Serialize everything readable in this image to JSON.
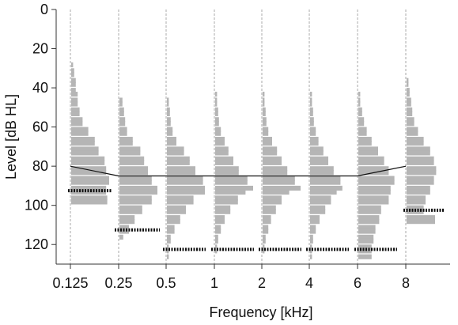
{
  "chart_data": {
    "type": "bar",
    "xlabel": "Frequency [kHz]",
    "ylabel": "Level [dB HL]",
    "x_ticks": [
      "0.125",
      "0.25",
      "0.5",
      "1",
      "2",
      "4",
      "6",
      "8"
    ],
    "y_ticks": [
      0,
      20,
      40,
      60,
      80,
      100,
      120
    ],
    "ylim": [
      0,
      130
    ],
    "y_inverted": true,
    "bin_width_db": 2.5,
    "colors": {
      "histogram": "#b5b5b5",
      "axis": "#333333",
      "guide_line": "#aaaaaa",
      "threshold_line": "#111111",
      "limit_marker": "#111111"
    },
    "series": [
      {
        "frequency": "0.125",
        "bins": [
          [
            27,
            0.05
          ],
          [
            30,
            0.08
          ],
          [
            32,
            0.08
          ],
          [
            35,
            0.12
          ],
          [
            37,
            0.12
          ],
          [
            40,
            0.12
          ],
          [
            42,
            0.17
          ],
          [
            45,
            0.17
          ],
          [
            47,
            0.17
          ],
          [
            50,
            0.22
          ],
          [
            52,
            0.22
          ],
          [
            55,
            0.3
          ],
          [
            57,
            0.3
          ],
          [
            60,
            0.45
          ],
          [
            62,
            0.45
          ],
          [
            65,
            0.62
          ],
          [
            67,
            0.62
          ],
          [
            70,
            0.72
          ],
          [
            72,
            0.72
          ],
          [
            75,
            0.88
          ],
          [
            77,
            0.88
          ],
          [
            80,
            0.92
          ],
          [
            82,
            0.92
          ],
          [
            85,
            1.0
          ],
          [
            87,
            1.0
          ],
          [
            90,
            0.92
          ],
          [
            92,
            0.92
          ],
          [
            95,
            0.95
          ],
          [
            97,
            0.95
          ]
        ],
        "threshold": 80,
        "limit": 92.5
      },
      {
        "frequency": "0.25",
        "bins": [
          [
            45,
            0.08
          ],
          [
            47,
            0.08
          ],
          [
            50,
            0.12
          ],
          [
            52,
            0.12
          ],
          [
            55,
            0.15
          ],
          [
            57,
            0.15
          ],
          [
            60,
            0.2
          ],
          [
            62,
            0.2
          ],
          [
            65,
            0.35
          ],
          [
            67,
            0.35
          ],
          [
            70,
            0.55
          ],
          [
            72,
            0.55
          ],
          [
            75,
            0.65
          ],
          [
            77,
            0.65
          ],
          [
            80,
            0.75
          ],
          [
            82,
            0.75
          ],
          [
            85,
            0.85
          ],
          [
            87,
            0.85
          ],
          [
            90,
            1.0
          ],
          [
            92,
            1.0
          ],
          [
            95,
            0.85
          ],
          [
            97,
            0.85
          ],
          [
            100,
            0.6
          ],
          [
            102,
            0.6
          ],
          [
            105,
            0.4
          ],
          [
            107,
            0.4
          ],
          [
            110,
            0.25
          ],
          [
            112,
            0.25
          ],
          [
            115,
            0.1
          ]
        ],
        "threshold": 85,
        "limit": 112.5
      },
      {
        "frequency": "0.5",
        "bins": [
          [
            45,
            0.05
          ],
          [
            47,
            0.05
          ],
          [
            50,
            0.08
          ],
          [
            52,
            0.08
          ],
          [
            55,
            0.1
          ],
          [
            57,
            0.1
          ],
          [
            60,
            0.15
          ],
          [
            62,
            0.15
          ],
          [
            65,
            0.25
          ],
          [
            67,
            0.25
          ],
          [
            70,
            0.45
          ],
          [
            72,
            0.45
          ],
          [
            75,
            0.6
          ],
          [
            77,
            0.6
          ],
          [
            80,
            0.75
          ],
          [
            82,
            0.75
          ],
          [
            85,
            0.95
          ],
          [
            87,
            0.95
          ],
          [
            90,
            1.0
          ],
          [
            92,
            1.0
          ],
          [
            95,
            0.7
          ],
          [
            97,
            0.7
          ],
          [
            100,
            0.5
          ],
          [
            102,
            0.5
          ],
          [
            105,
            0.35
          ],
          [
            107,
            0.35
          ],
          [
            110,
            0.2
          ],
          [
            112,
            0.2
          ],
          [
            115,
            0.1
          ],
          [
            117,
            0.1
          ],
          [
            120,
            0.05
          ],
          [
            122,
            0.05
          ],
          [
            125,
            0.05
          ]
        ],
        "threshold": 85,
        "limit": 122.5
      },
      {
        "frequency": "1",
        "bins": [
          [
            42,
            0.05
          ],
          [
            45,
            0.05
          ],
          [
            47,
            0.05
          ],
          [
            50,
            0.08
          ],
          [
            52,
            0.08
          ],
          [
            55,
            0.1
          ],
          [
            57,
            0.1
          ],
          [
            60,
            0.15
          ],
          [
            62,
            0.15
          ],
          [
            65,
            0.25
          ],
          [
            67,
            0.25
          ],
          [
            70,
            0.35
          ],
          [
            72,
            0.35
          ],
          [
            75,
            0.48
          ],
          [
            77,
            0.48
          ],
          [
            80,
            0.62
          ],
          [
            82,
            0.62
          ],
          [
            85,
            0.85
          ],
          [
            87,
            0.85
          ],
          [
            90,
            1.0
          ],
          [
            92,
            0.8
          ],
          [
            95,
            0.6
          ],
          [
            97,
            0.6
          ],
          [
            100,
            0.4
          ],
          [
            102,
            0.4
          ],
          [
            105,
            0.25
          ],
          [
            107,
            0.25
          ],
          [
            110,
            0.15
          ],
          [
            112,
            0.15
          ],
          [
            115,
            0.08
          ],
          [
            117,
            0.08
          ],
          [
            120,
            0.05
          ],
          [
            122,
            0.05
          ]
        ],
        "threshold": 85,
        "limit": 122.5
      },
      {
        "frequency": "2",
        "bins": [
          [
            42,
            0.05
          ],
          [
            45,
            0.05
          ],
          [
            47,
            0.05
          ],
          [
            50,
            0.08
          ],
          [
            52,
            0.08
          ],
          [
            55,
            0.1
          ],
          [
            57,
            0.1
          ],
          [
            60,
            0.15
          ],
          [
            62,
            0.15
          ],
          [
            65,
            0.25
          ],
          [
            67,
            0.25
          ],
          [
            70,
            0.38
          ],
          [
            72,
            0.38
          ],
          [
            75,
            0.5
          ],
          [
            77,
            0.5
          ],
          [
            80,
            0.65
          ],
          [
            82,
            0.65
          ],
          [
            85,
            0.85
          ],
          [
            87,
            0.85
          ],
          [
            90,
            1.0
          ],
          [
            92,
            0.7
          ],
          [
            95,
            0.5
          ],
          [
            97,
            0.5
          ],
          [
            100,
            0.35
          ],
          [
            102,
            0.35
          ],
          [
            105,
            0.22
          ],
          [
            107,
            0.22
          ],
          [
            110,
            0.15
          ],
          [
            112,
            0.15
          ],
          [
            115,
            0.08
          ],
          [
            117,
            0.08
          ],
          [
            120,
            0.05
          ],
          [
            122,
            0.05
          ]
        ],
        "threshold": 85,
        "limit": 122.5
      },
      {
        "frequency": "4",
        "bins": [
          [
            42,
            0.05
          ],
          [
            45,
            0.05
          ],
          [
            47,
            0.05
          ],
          [
            50,
            0.08
          ],
          [
            52,
            0.08
          ],
          [
            55,
            0.1
          ],
          [
            57,
            0.1
          ],
          [
            60,
            0.15
          ],
          [
            62,
            0.15
          ],
          [
            65,
            0.22
          ],
          [
            67,
            0.22
          ],
          [
            70,
            0.35
          ],
          [
            72,
            0.35
          ],
          [
            75,
            0.48
          ],
          [
            77,
            0.48
          ],
          [
            80,
            0.62
          ],
          [
            82,
            0.62
          ],
          [
            85,
            0.8
          ],
          [
            87,
            0.8
          ],
          [
            90,
            0.85
          ],
          [
            92,
            0.7
          ],
          [
            95,
            0.55
          ],
          [
            97,
            0.55
          ],
          [
            100,
            0.4
          ],
          [
            102,
            0.4
          ],
          [
            105,
            0.25
          ],
          [
            107,
            0.25
          ],
          [
            110,
            0.15
          ],
          [
            112,
            0.15
          ],
          [
            115,
            0.08
          ],
          [
            117,
            0.08
          ],
          [
            120,
            0.05
          ],
          [
            122,
            0.05
          ],
          [
            125,
            0.05
          ]
        ],
        "threshold": 85,
        "limit": 122.5
      },
      {
        "frequency": "6",
        "bins": [
          [
            42,
            0.05
          ],
          [
            45,
            0.05
          ],
          [
            47,
            0.05
          ],
          [
            50,
            0.1
          ],
          [
            52,
            0.1
          ],
          [
            55,
            0.15
          ],
          [
            57,
            0.15
          ],
          [
            60,
            0.22
          ],
          [
            62,
            0.22
          ],
          [
            65,
            0.35
          ],
          [
            67,
            0.35
          ],
          [
            70,
            0.52
          ],
          [
            72,
            0.52
          ],
          [
            75,
            0.68
          ],
          [
            77,
            0.68
          ],
          [
            80,
            0.8
          ],
          [
            82,
            0.8
          ],
          [
            85,
            0.95
          ],
          [
            87,
            0.95
          ],
          [
            90,
            0.85
          ],
          [
            92,
            0.85
          ],
          [
            95,
            0.8
          ],
          [
            97,
            0.8
          ],
          [
            100,
            0.6
          ],
          [
            102,
            0.6
          ],
          [
            105,
            0.55
          ],
          [
            107,
            0.55
          ],
          [
            110,
            0.45
          ],
          [
            112,
            0.45
          ],
          [
            115,
            0.4
          ],
          [
            117,
            0.4
          ],
          [
            120,
            0.35
          ],
          [
            122,
            0.35
          ],
          [
            125,
            0.35
          ]
        ],
        "threshold": 85,
        "limit": 122.5
      },
      {
        "frequency": "8",
        "bins": [
          [
            35,
            0.05
          ],
          [
            37,
            0.05
          ],
          [
            40,
            0.08
          ],
          [
            42,
            0.08
          ],
          [
            45,
            0.12
          ],
          [
            47,
            0.12
          ],
          [
            50,
            0.15
          ],
          [
            52,
            0.15
          ],
          [
            55,
            0.2
          ],
          [
            57,
            0.2
          ],
          [
            60,
            0.3
          ],
          [
            62,
            0.3
          ],
          [
            65,
            0.45
          ],
          [
            67,
            0.45
          ],
          [
            70,
            0.62
          ],
          [
            72,
            0.62
          ],
          [
            75,
            0.72
          ],
          [
            77,
            0.72
          ],
          [
            80,
            0.78
          ],
          [
            82,
            0.78
          ],
          [
            85,
            0.72
          ],
          [
            87,
            0.72
          ],
          [
            90,
            0.62
          ],
          [
            92,
            0.62
          ],
          [
            95,
            0.5
          ],
          [
            97,
            0.5
          ],
          [
            100,
            0.45
          ],
          [
            102,
            0.45
          ],
          [
            105,
            0.75
          ],
          [
            107,
            0.75
          ]
        ],
        "threshold": 80,
        "limit": 102.5
      }
    ]
  }
}
